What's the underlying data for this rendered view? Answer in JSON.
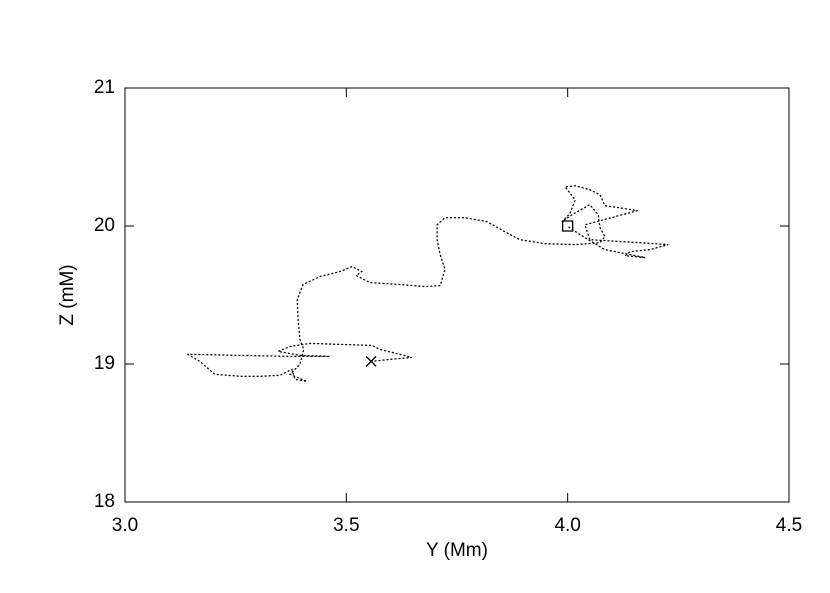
{
  "chart_data": {
    "type": "line",
    "xlabel": "Y (Mm)",
    "ylabel": "Z (mM)",
    "xlim": [
      3.0,
      4.5
    ],
    "ylim": [
      18,
      21
    ],
    "xticks": [
      {
        "value": 3.0,
        "label": "3.0"
      },
      {
        "value": 3.5,
        "label": "3.5"
      },
      {
        "value": 4.0,
        "label": "4.0"
      },
      {
        "value": 4.5,
        "label": "4.5"
      }
    ],
    "yticks": [
      18,
      19,
      20,
      21
    ],
    "line_style": "dotted",
    "series": [
      {
        "color": "#000000",
        "x": [
          3.556,
          3.599,
          3.648,
          3.621,
          3.576,
          3.558,
          3.486,
          3.418,
          3.373,
          3.346,
          3.395,
          3.463,
          3.373,
          3.26,
          3.142,
          3.169,
          3.203,
          3.26,
          3.305,
          3.35,
          3.377,
          3.384,
          3.411,
          3.373,
          3.395,
          3.404,
          3.395,
          3.391,
          3.389,
          3.402,
          3.441,
          3.486,
          3.513,
          3.535,
          3.522,
          3.553,
          3.621,
          3.678,
          3.712,
          3.723,
          3.712,
          3.705,
          3.705,
          3.723,
          3.768,
          3.818,
          3.858,
          3.892,
          3.949,
          4.017,
          4.073,
          4.084,
          4.073,
          4.069,
          4.05,
          4.01,
          3.987,
          4.005,
          4.017,
          3.994,
          4.017,
          4.05,
          4.073,
          4.084,
          4.118,
          4.157,
          4.039,
          4.05,
          4.163,
          4.227,
          4.186,
          4.141,
          4.13,
          4.175,
          4.084,
          4.028,
          3.998
        ],
        "values": [
          19.019,
          19.033,
          19.048,
          19.07,
          19.106,
          19.135,
          19.142,
          19.149,
          19.127,
          19.091,
          19.062,
          19.055,
          19.055,
          19.062,
          19.07,
          19.019,
          18.925,
          18.911,
          18.911,
          18.918,
          18.961,
          18.889,
          18.874,
          18.925,
          18.997,
          19.106,
          19.178,
          19.323,
          19.467,
          19.576,
          19.634,
          19.67,
          19.706,
          19.67,
          19.641,
          19.59,
          19.576,
          19.561,
          19.568,
          19.684,
          19.793,
          19.901,
          20.009,
          20.06,
          20.06,
          20.031,
          19.959,
          19.901,
          19.872,
          19.865,
          19.879,
          19.923,
          19.988,
          20.082,
          20.154,
          20.082,
          20.031,
          20.089,
          20.19,
          20.284,
          20.291,
          20.263,
          20.226,
          20.147,
          20.132,
          20.111,
          20.009,
          19.901,
          19.879,
          19.865,
          19.829,
          19.814,
          19.785,
          19.771,
          19.829,
          19.937,
          20.002
        ]
      }
    ],
    "markers": [
      {
        "x": 3.556,
        "y": 19.019,
        "symbol": "x"
      },
      {
        "x": 4.0,
        "y": 20.0,
        "symbol": "square"
      }
    ]
  }
}
